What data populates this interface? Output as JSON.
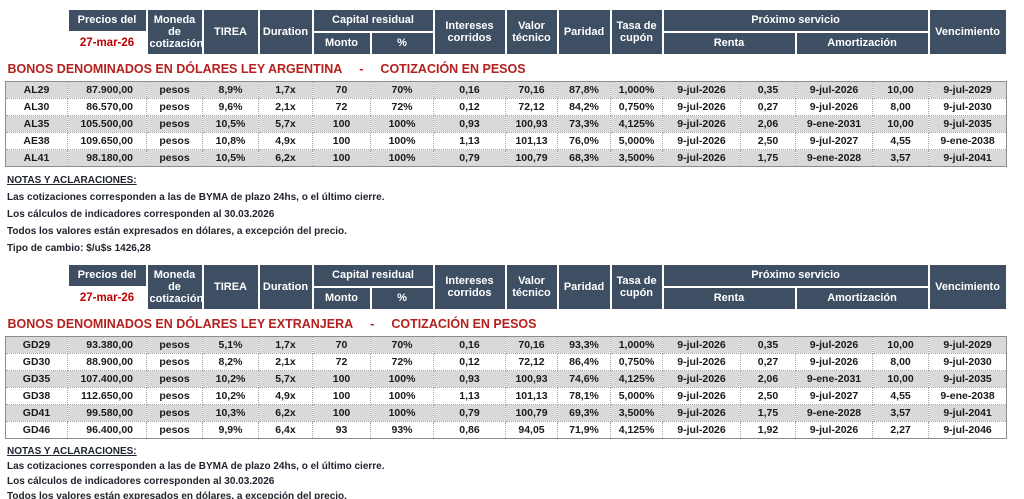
{
  "colors": {
    "header_bg": "#3e4e63",
    "title_red": "#b5201e",
    "date_red": "#c00000",
    "row_stripe": "#d9d9d9",
    "notes_ink": "#20242e"
  },
  "header": {
    "precios_label": "Precios del",
    "precios_date": "27-mar-26",
    "moneda": "Moneda de cotización",
    "tirea": "TIREA",
    "duration": "Duration",
    "capital_residual": "Capital residual",
    "monto": "Monto",
    "pct": "%",
    "intereses": "Intereses corridos",
    "valor_tecnico": "Valor técnico",
    "paridad": "Paridad",
    "tasa_cupon": "Tasa de cupón",
    "proximo_servicio": "Próximo servicio",
    "renta": "Renta",
    "amortizacion": "Amortización",
    "vencimiento": "Vencimiento"
  },
  "tables": [
    {
      "title": "BONOS DENOMINADOS EN DÓLARES LEY ARGENTINA",
      "separator": "-",
      "subtitle": "COTIZACIÓN EN PESOS",
      "rows": [
        [
          "AL29",
          "87.900,00",
          "pesos",
          "8,9%",
          "1,7x",
          "70",
          "70%",
          "0,16",
          "70,16",
          "87,8%",
          "1,000%",
          "9-jul-2026",
          "0,35",
          "9-jul-2026",
          "10,00",
          "9-jul-2029"
        ],
        [
          "AL30",
          "86.570,00",
          "pesos",
          "9,6%",
          "2,1x",
          "72",
          "72%",
          "0,12",
          "72,12",
          "84,2%",
          "0,750%",
          "9-jul-2026",
          "0,27",
          "9-jul-2026",
          "8,00",
          "9-jul-2030"
        ],
        [
          "AL35",
          "105.500,00",
          "pesos",
          "10,5%",
          "5,7x",
          "100",
          "100%",
          "0,93",
          "100,93",
          "73,3%",
          "4,125%",
          "9-jul-2026",
          "2,06",
          "9-ene-2031",
          "10,00",
          "9-jul-2035"
        ],
        [
          "AE38",
          "109.650,00",
          "pesos",
          "10,8%",
          "4,9x",
          "100",
          "100%",
          "1,13",
          "101,13",
          "76,0%",
          "5,000%",
          "9-jul-2026",
          "2,50",
          "9-jul-2027",
          "4,55",
          "9-ene-2038"
        ],
        [
          "AL41",
          "98.180,00",
          "pesos",
          "10,5%",
          "6,2x",
          "100",
          "100%",
          "0,79",
          "100,79",
          "68,3%",
          "3,500%",
          "9-jul-2026",
          "1,75",
          "9-ene-2028",
          "3,57",
          "9-jul-2041"
        ]
      ]
    },
    {
      "title": "BONOS DENOMINADOS EN DÓLARES LEY EXTRANJERA",
      "separator": "-",
      "subtitle": "COTIZACIÓN EN PESOS",
      "rows": [
        [
          "GD29",
          "93.380,00",
          "pesos",
          "5,1%",
          "1,7x",
          "70",
          "70%",
          "0,16",
          "70,16",
          "93,3%",
          "1,000%",
          "9-jul-2026",
          "0,35",
          "9-jul-2026",
          "10,00",
          "9-jul-2029"
        ],
        [
          "GD30",
          "88.900,00",
          "pesos",
          "8,2%",
          "2,1x",
          "72",
          "72%",
          "0,12",
          "72,12",
          "86,4%",
          "0,750%",
          "9-jul-2026",
          "0,27",
          "9-jul-2026",
          "8,00",
          "9-jul-2030"
        ],
        [
          "GD35",
          "107.400,00",
          "pesos",
          "10,2%",
          "5,7x",
          "100",
          "100%",
          "0,93",
          "100,93",
          "74,6%",
          "4,125%",
          "9-jul-2026",
          "2,06",
          "9-ene-2031",
          "10,00",
          "9-jul-2035"
        ],
        [
          "GD38",
          "112.650,00",
          "pesos",
          "10,2%",
          "4,9x",
          "100",
          "100%",
          "1,13",
          "101,13",
          "78,1%",
          "5,000%",
          "9-jul-2026",
          "2,50",
          "9-jul-2027",
          "4,55",
          "9-ene-2038"
        ],
        [
          "GD41",
          "99.580,00",
          "pesos",
          "10,3%",
          "6,2x",
          "100",
          "100%",
          "0,79",
          "100,79",
          "69,3%",
          "3,500%",
          "9-jul-2026",
          "1,75",
          "9-ene-2028",
          "3,57",
          "9-jul-2041"
        ],
        [
          "GD46",
          "96.400,00",
          "pesos",
          "9,9%",
          "6,4x",
          "93",
          "93%",
          "0,86",
          "94,05",
          "71,9%",
          "4,125%",
          "9-jul-2026",
          "1,92",
          "9-jul-2026",
          "2,27",
          "9-jul-2046"
        ]
      ]
    }
  ],
  "notes": {
    "heading": "NOTAS Y ACLARACIONES:",
    "lines": [
      "Las cotizaciones corresponden a las de BYMA de plazo 24hs, o el último cierre.",
      "Los cálculos de indicadores corresponden al 30.03.2026",
      "Todos los valores están expresados en dólares, a excepción del precio.",
      "Tipo de cambio: $/u$s 1426,28"
    ]
  }
}
